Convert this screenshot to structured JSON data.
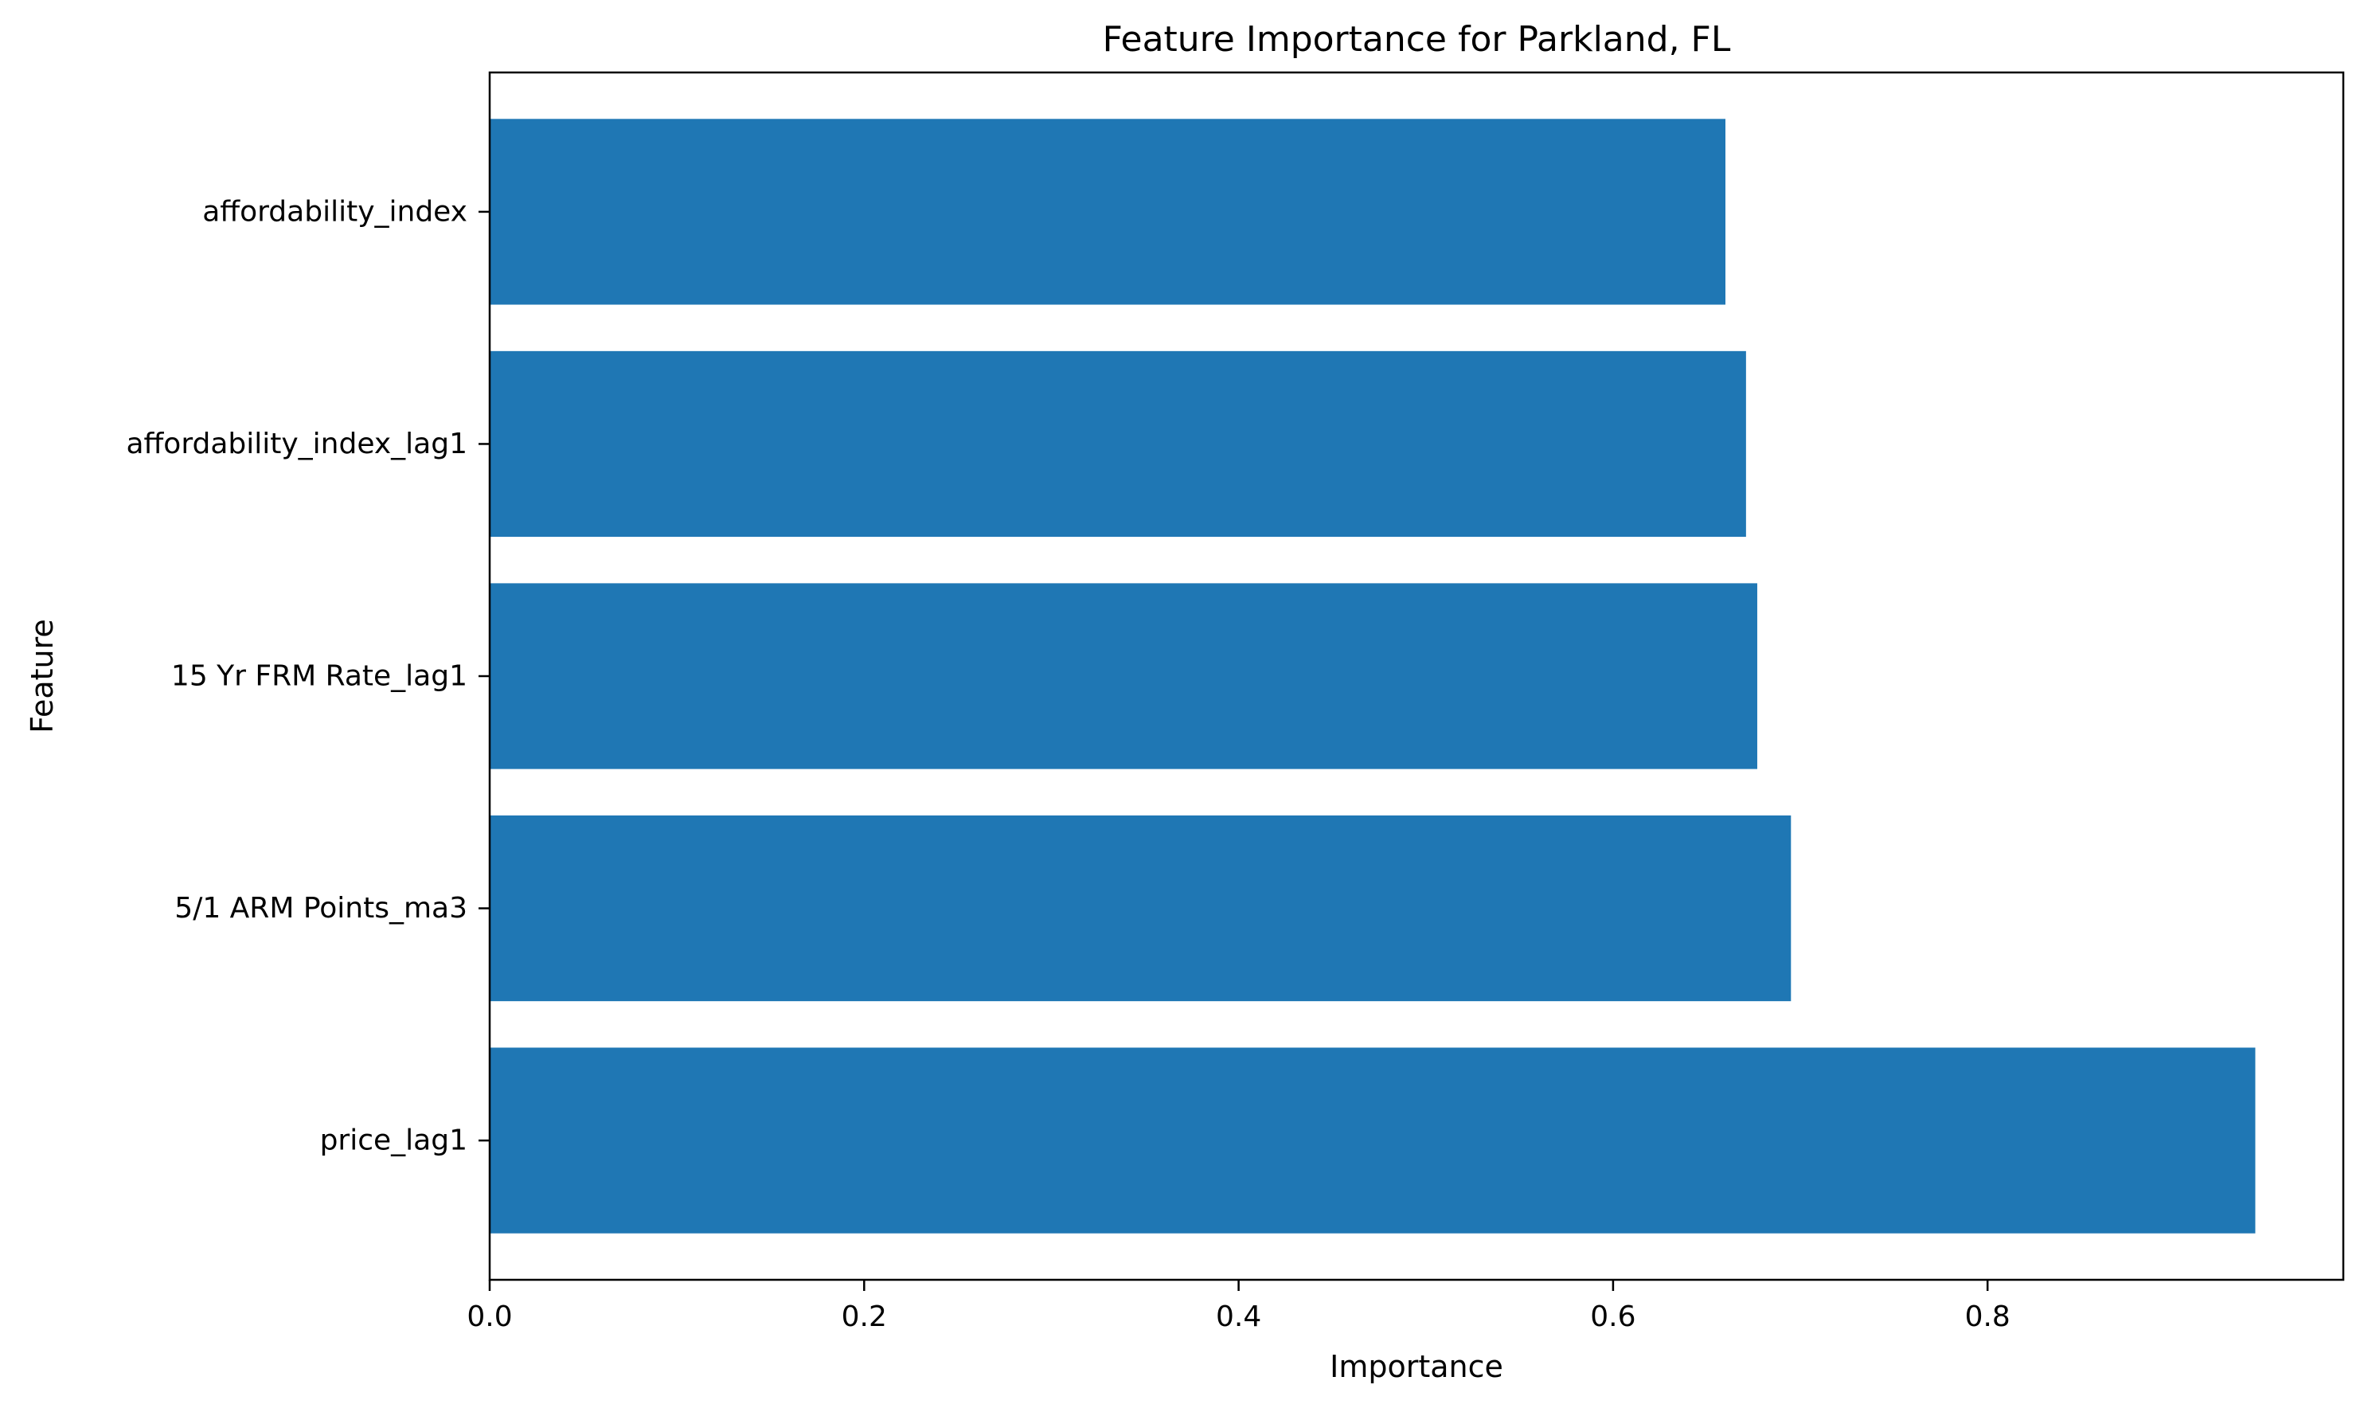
{
  "chart_data": {
    "type": "bar",
    "orientation": "horizontal",
    "title": "Feature Importance for Parkland, FL",
    "xlabel": "Importance",
    "ylabel": "Feature",
    "categories": [
      "price_lag1",
      "5/1 ARM Points_ma3",
      "15 Yr FRM Rate_lag1",
      "affordability_index_lag1",
      "affordability_index"
    ],
    "values": [
      0.943,
      0.695,
      0.677,
      0.671,
      0.66
    ],
    "xlim": [
      0.0,
      0.99
    ],
    "xticks": [
      0.0,
      0.2,
      0.4,
      0.6,
      0.8
    ],
    "xtick_labels": [
      "0.0",
      "0.2",
      "0.4",
      "0.6",
      "0.8"
    ],
    "grid": false,
    "legend": "none",
    "bar_color": "#1f77b4"
  }
}
